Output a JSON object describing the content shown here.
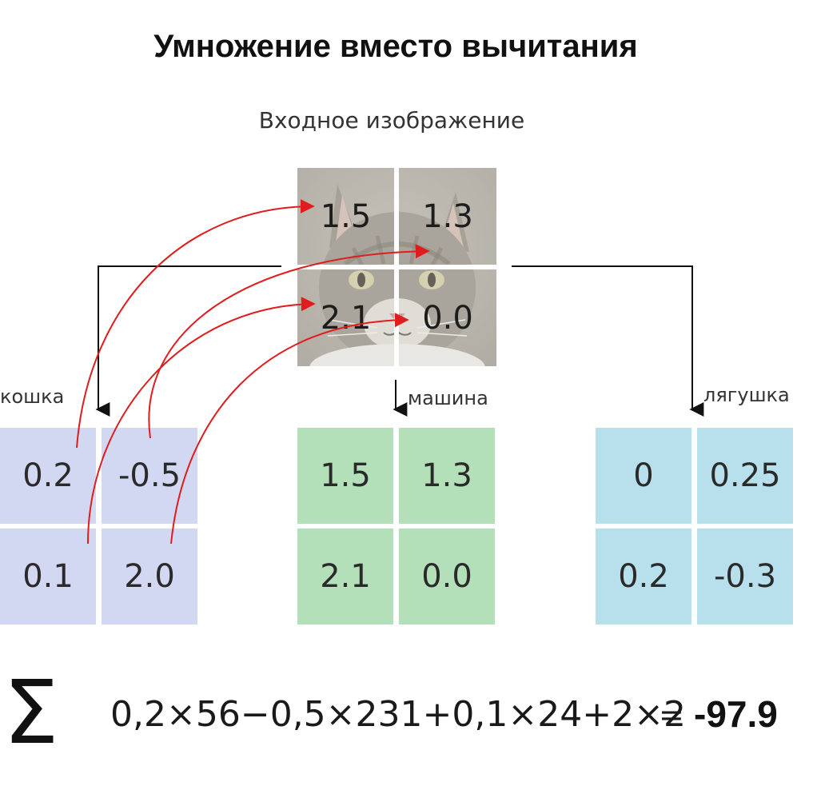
{
  "title": "Умножение вместо вычитания",
  "input_label": "Входное изображение",
  "input_image": {
    "values": [
      "1.5",
      "1.3",
      "2.1",
      "0.0"
    ]
  },
  "filters": [
    {
      "label": "кошка",
      "values": [
        "0.2",
        "-0.5",
        "0.1",
        "2.0"
      ],
      "color": "#d2d7f2"
    },
    {
      "label": "машина",
      "values": [
        "1.5",
        "1.3",
        "2.1",
        "0.0"
      ],
      "color": "#b3e0b9"
    },
    {
      "label": "лягушка",
      "values": [
        "0",
        "0.25",
        "0.2",
        "-0.3"
      ],
      "color": "#b7e0ec"
    }
  ],
  "arrow_color": "#e01c1c",
  "sum_symbol": "Σ",
  "formula": "0,2×56−0,5×231+0,1×24+2×2",
  "equals": "=",
  "result": "-97.9"
}
